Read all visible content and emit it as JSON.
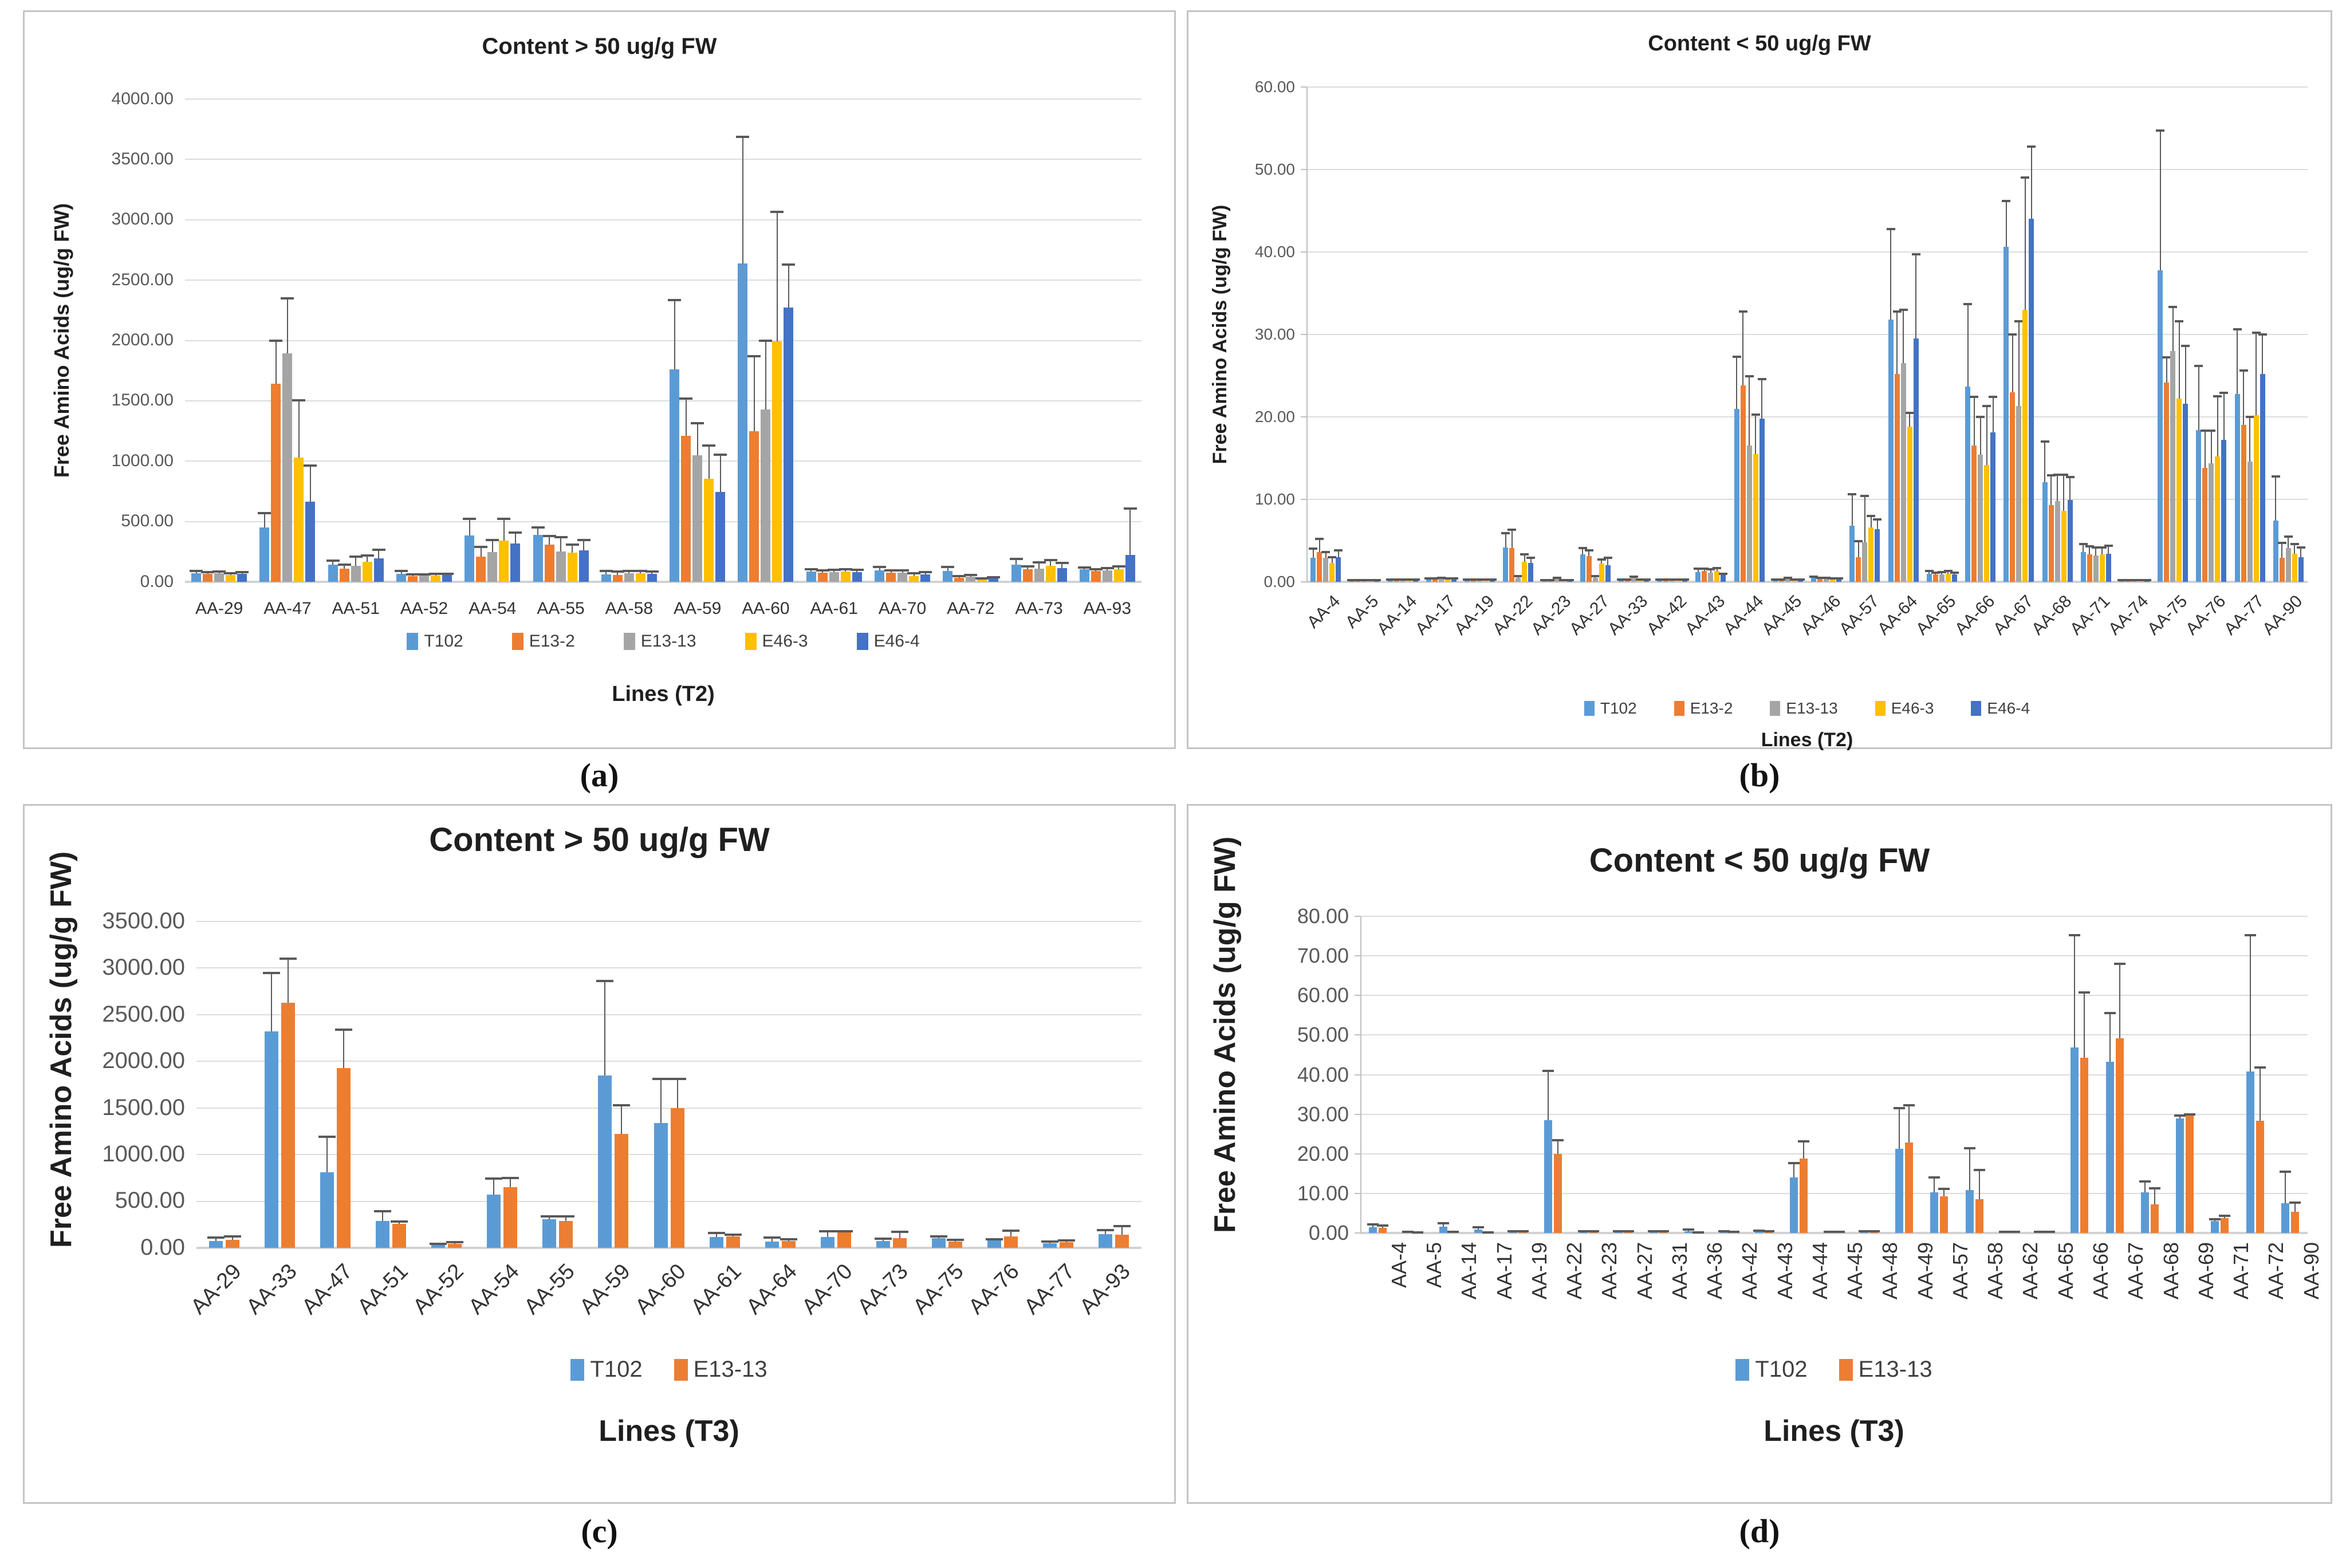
{
  "figure": {
    "description": "Four-panel bar chart figure of free amino acid contents in transgenic lines",
    "captions": [
      "(a)",
      "(b)",
      "(c)",
      "(d)"
    ]
  },
  "colors": {
    "series": {
      "T102": "#5B9BD5",
      "E13-2": "#ED7D31",
      "E13-13": "#A5A5A5",
      "E46-3": "#FFC000",
      "E46-4": "#4472C4"
    },
    "error_bar": "#595959",
    "gridline": "#dcdcdc",
    "zero_axis": "#d2d2d2",
    "panel_border": "#c4c4c4",
    "tick_text": "#595959",
    "label_text": "#333333",
    "title_text": "#1f1f1f"
  },
  "chart_data": [
    {
      "id": "a",
      "type": "bar",
      "title": "Content > 50 ug/g FW",
      "xlabel": "Lines (T2)",
      "ylabel": "Free Amino Acids (ug/g FW)",
      "ylim": [
        0,
        4000
      ],
      "ytick_step": 500,
      "ytick_labels": [
        "0.00",
        "500.00",
        "1000.00",
        "1500.00",
        "2000.00",
        "2500.00",
        "3000.00",
        "3500.00",
        "4000.00"
      ],
      "grid": true,
      "legend_position": "bottom",
      "caption": "(a)",
      "categories": [
        "AA-29",
        "AA-47",
        "AA-51",
        "AA-52",
        "AA-54",
        "AA-55",
        "AA-58",
        "AA-59",
        "AA-60",
        "AA-61",
        "AA-70",
        "AA-72",
        "AA-73",
        "AA-93"
      ],
      "series": [
        {
          "name": "T102",
          "color": "#5B9BD5",
          "values": [
            70,
            450,
            140,
            67,
            385,
            390,
            62,
            1760,
            2640,
            85,
            95,
            88,
            140,
            105
          ],
          "errors_high": [
            88,
            570,
            175,
            88,
            520,
            452,
            90,
            2335,
            3685,
            105,
            125,
            122,
            190,
            120
          ]
        },
        {
          "name": "E13-2",
          "color": "#ED7D31",
          "values": [
            65,
            1640,
            107,
            48,
            207,
            310,
            55,
            1210,
            1250,
            75,
            77,
            33,
            105,
            88
          ],
          "errors_high": [
            80,
            2000,
            140,
            60,
            288,
            380,
            85,
            1520,
            1870,
            95,
            95,
            48,
            130,
            105
          ]
        },
        {
          "name": "E13-13",
          "color": "#A5A5A5",
          "values": [
            70,
            1895,
            131,
            51,
            247,
            252,
            70,
            1050,
            1430,
            80,
            77,
            41,
            110,
            96
          ],
          "errors_high": [
            85,
            2350,
            207,
            62,
            348,
            372,
            90,
            1315,
            2000,
            100,
            95,
            55,
            160,
            115
          ]
        },
        {
          "name": "E46-3",
          "color": "#FFC000",
          "values": [
            55,
            1030,
            167,
            54,
            340,
            240,
            70,
            855,
            1995,
            85,
            49,
            19,
            132,
            104
          ],
          "errors_high": [
            70,
            1505,
            216,
            66,
            520,
            308,
            90,
            1130,
            3065,
            105,
            70,
            30,
            178,
            128
          ]
        },
        {
          "name": "E46-4",
          "color": "#4472C4",
          "values": [
            65,
            665,
            196,
            56,
            320,
            260,
            65,
            745,
            2275,
            80,
            60,
            27,
            115,
            225
          ],
          "errors_high": [
            80,
            965,
            268,
            68,
            407,
            348,
            85,
            1055,
            2630,
            100,
            80,
            38,
            155,
            608
          ]
        }
      ]
    },
    {
      "id": "b",
      "type": "bar",
      "title": "Content < 50 ug/g FW",
      "xlabel": "Lines (T2)",
      "ylabel": "Free Amino Acids (ug/g FW)",
      "ylim": [
        0,
        60
      ],
      "ytick_step": 10,
      "ytick_labels": [
        "0.00",
        "10.00",
        "20.00",
        "30.00",
        "40.00",
        "50.00",
        "60.00"
      ],
      "grid": true,
      "legend_position": "bottom",
      "caption": "(b)",
      "categories": [
        "AA-4",
        "AA-5",
        "AA-14",
        "AA-17",
        "AA-19",
        "AA-22",
        "AA-23",
        "AA-27",
        "AA-33",
        "AA-42",
        "AA-43",
        "AA-44",
        "AA-45",
        "AA-46",
        "AA-57",
        "AA-64",
        "AA-65",
        "AA-66",
        "AA-67",
        "AA-68",
        "AA-71",
        "AA-74",
        "AA-75",
        "AA-76",
        "AA-77",
        "AA-90"
      ],
      "series": [
        {
          "name": "T102",
          "color": "#5B9BD5",
          "values": [
            2.9,
            0.1,
            0.2,
            0.3,
            0.2,
            4.2,
            0.1,
            3.3,
            0.2,
            0.2,
            1.2,
            21.0,
            0.2,
            0.5,
            6.8,
            31.8,
            1.0,
            23.7,
            40.6,
            12.1,
            3.6,
            0.1,
            37.8,
            18.4,
            22.8,
            7.4
          ],
          "errors_high": [
            4.0,
            0.2,
            0.3,
            0.4,
            0.3,
            5.9,
            0.2,
            4.1,
            0.3,
            0.3,
            1.6,
            27.3,
            0.3,
            0.6,
            10.6,
            42.8,
            1.3,
            33.7,
            46.2,
            17.0,
            4.6,
            0.2,
            54.7,
            26.2,
            30.6,
            12.8
          ]
        },
        {
          "name": "E13-2",
          "color": "#ED7D31",
          "values": [
            3.6,
            0.1,
            0.2,
            0.3,
            0.2,
            4.1,
            0.1,
            3.1,
            0.2,
            0.2,
            1.3,
            23.8,
            0.2,
            0.4,
            3.0,
            25.2,
            0.9,
            16.5,
            23.0,
            9.3,
            3.3,
            0.1,
            24.2,
            13.8,
            19.0,
            2.9
          ],
          "errors_high": [
            5.2,
            0.2,
            0.3,
            0.4,
            0.3,
            6.3,
            0.2,
            3.8,
            0.3,
            0.3,
            1.6,
            32.8,
            0.3,
            0.5,
            4.9,
            32.8,
            1.1,
            22.4,
            30.0,
            12.9,
            4.3,
            0.2,
            27.2,
            18.3,
            25.6,
            4.7
          ]
        },
        {
          "name": "E13-13",
          "color": "#A5A5A5",
          "values": [
            2.9,
            0.1,
            0.2,
            0.4,
            0.2,
            0.5,
            0.4,
            0.5,
            0.5,
            0.2,
            1.1,
            16.5,
            0.4,
            0.4,
            4.8,
            26.5,
            0.9,
            15.4,
            21.3,
            9.8,
            3.2,
            0.1,
            28.0,
            14.4,
            14.6,
            4.1
          ],
          "errors_high": [
            3.6,
            0.2,
            0.3,
            0.5,
            0.3,
            0.7,
            0.5,
            0.7,
            0.6,
            0.3,
            1.5,
            24.9,
            0.5,
            0.5,
            10.4,
            33.0,
            1.2,
            20.0,
            31.6,
            13.0,
            4.2,
            0.2,
            33.3,
            18.3,
            20.0,
            5.5
          ]
        },
        {
          "name": "E46-3",
          "color": "#FFC000",
          "values": [
            2.3,
            0.1,
            0.2,
            0.3,
            0.2,
            2.4,
            0.1,
            2.2,
            0.2,
            0.2,
            1.3,
            15.5,
            0.2,
            0.3,
            6.6,
            18.8,
            1.0,
            14.2,
            33.0,
            8.6,
            3.3,
            0.1,
            22.2,
            15.2,
            20.2,
            3.4
          ],
          "errors_high": [
            3.0,
            0.2,
            0.3,
            0.4,
            0.3,
            3.3,
            0.2,
            2.7,
            0.3,
            0.3,
            1.7,
            20.3,
            0.3,
            0.4,
            8.0,
            20.5,
            1.3,
            21.3,
            49.0,
            13.0,
            4.2,
            0.2,
            31.6,
            22.5,
            30.2,
            4.6
          ]
        },
        {
          "name": "E46-4",
          "color": "#4472C4",
          "values": [
            3.0,
            0.1,
            0.2,
            0.3,
            0.2,
            2.3,
            0.1,
            2.0,
            0.2,
            0.2,
            0.8,
            19.8,
            0.2,
            0.3,
            6.4,
            29.5,
            0.9,
            18.1,
            44.0,
            9.9,
            3.4,
            0.1,
            21.6,
            17.2,
            25.2,
            3.0
          ],
          "errors_high": [
            3.8,
            0.2,
            0.3,
            0.4,
            0.3,
            2.9,
            0.2,
            2.9,
            0.3,
            0.3,
            1.0,
            24.6,
            0.3,
            0.4,
            7.6,
            39.7,
            1.1,
            22.4,
            52.8,
            12.7,
            4.4,
            0.2,
            28.6,
            22.9,
            30.0,
            4.2
          ]
        }
      ]
    },
    {
      "id": "c",
      "type": "bar",
      "title": "Content > 50 ug/g FW",
      "xlabel": "Lines (T3)",
      "ylabel": "Free Amino Acids (ug/g FW)",
      "ylim": [
        0,
        3500
      ],
      "ytick_step": 500,
      "ytick_labels": [
        "0.00",
        "500.00",
        "1000.00",
        "1500.00",
        "2000.00",
        "2500.00",
        "3000.00",
        "3500.00"
      ],
      "grid": true,
      "legend_position": "bottom",
      "caption": "(c)",
      "categories": [
        "AA-29",
        "AA-33",
        "AA-47",
        "AA-51",
        "AA-52",
        "AA-54",
        "AA-55",
        "AA-59",
        "AA-60",
        "AA-61",
        "AA-64",
        "AA-70",
        "AA-73",
        "AA-75",
        "AA-76",
        "AA-77",
        "AA-93"
      ],
      "series": [
        {
          "name": "T102",
          "color": "#5B9BD5",
          "values": [
            75,
            2320,
            810,
            290,
            30,
            570,
            310,
            1850,
            1340,
            115,
            68,
            119,
            72,
            103,
            78,
            51,
            150
          ],
          "errors_high": [
            110,
            2950,
            1190,
            390,
            45,
            740,
            335,
            2860,
            1810,
            160,
            109,
            181,
            100,
            120,
            95,
            65,
            191
          ]
        },
        {
          "name": "E13-13",
          "color": "#ED7D31",
          "values": [
            85,
            2630,
            1930,
            255,
            45,
            650,
            290,
            1220,
            1500,
            120,
            72,
            165,
            103,
            68,
            123,
            62,
            144
          ],
          "errors_high": [
            120,
            3100,
            2340,
            285,
            60,
            750,
            335,
            1530,
            1810,
            140,
            90,
            181,
            171,
            85,
            185,
            80,
            232
          ]
        }
      ]
    },
    {
      "id": "d",
      "type": "bar",
      "title": "Content < 50 ug/g FW",
      "xlabel": "Lines (T3)",
      "ylabel": "Free Amino Acids (ug/g FW)",
      "ylim": [
        0,
        80
      ],
      "ytick_step": 10,
      "ytick_labels": [
        "0.00",
        "10.00",
        "20.00",
        "30.00",
        "40.00",
        "50.00",
        "60.00",
        "70.00",
        "80.00"
      ],
      "grid": true,
      "legend_position": "bottom",
      "caption": "(d)",
      "categories": [
        "AA-4",
        "AA-5",
        "AA-14",
        "AA-17",
        "AA-19",
        "AA-22",
        "AA-23",
        "AA-27",
        "AA-31",
        "AA-36",
        "AA-42",
        "AA-43",
        "AA-44",
        "AA-45",
        "AA-48",
        "AA-49",
        "AA-57",
        "AA-58",
        "AA-62",
        "AA-65",
        "AA-66",
        "AA-67",
        "AA-68",
        "AA-69",
        "AA-71",
        "AA-72",
        "AA-90"
      ],
      "series": [
        {
          "name": "T102",
          "color": "#5B9BD5",
          "values": [
            1.5,
            0.2,
            1.6,
            0.8,
            0.3,
            28.5,
            0.3,
            0.3,
            0.3,
            0.5,
            0.3,
            0.5,
            14.0,
            0.2,
            0.3,
            21.3,
            10.2,
            10.9,
            0.2,
            0.2,
            46.9,
            43.3,
            10.3,
            29.0,
            3.0,
            40.8,
            7.5
          ],
          "errors_high": [
            2.1,
            0.3,
            2.5,
            1.4,
            0.4,
            41.0,
            0.4,
            0.4,
            0.4,
            0.9,
            0.4,
            0.6,
            17.7,
            0.3,
            0.4,
            31.5,
            14.1,
            21.4,
            0.3,
            0.3,
            75.2,
            55.5,
            13.0,
            29.7,
            3.5,
            75.2,
            15.5
          ]
        },
        {
          "name": "E13-13",
          "color": "#ED7D31",
          "values": [
            1.3,
            0.1,
            0.2,
            0.1,
            0.3,
            20.0,
            0.3,
            0.3,
            0.3,
            0.1,
            0.2,
            0.4,
            18.8,
            0.2,
            0.3,
            22.8,
            9.3,
            8.5,
            0.2,
            0.2,
            44.2,
            49.2,
            7.2,
            29.7,
            3.7,
            28.4,
            5.3
          ],
          "errors_high": [
            1.9,
            0.2,
            0.3,
            0.2,
            0.4,
            23.5,
            0.4,
            0.4,
            0.4,
            0.2,
            0.3,
            0.5,
            23.2,
            0.3,
            0.4,
            32.2,
            11.2,
            15.9,
            0.3,
            0.3,
            60.7,
            68.0,
            11.3,
            30.0,
            4.4,
            41.8,
            7.7
          ]
        }
      ]
    }
  ]
}
